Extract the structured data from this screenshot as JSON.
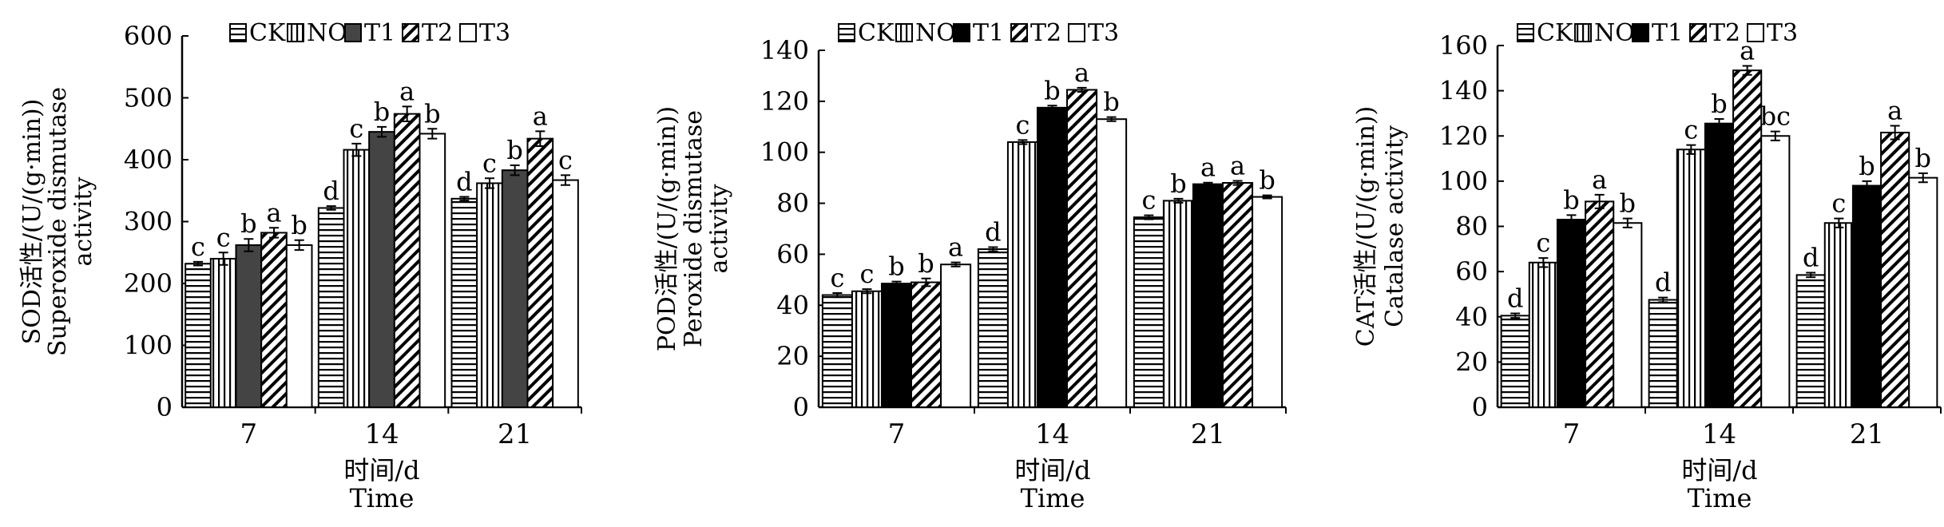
{
  "chart_data": [
    {
      "type": "bar",
      "ylabel_lines": [
        "SOD活性/(U/(g·min))",
        "Superoxide dismutase",
        "activity"
      ],
      "xlabel_lines": [
        "时间/d",
        "Time"
      ],
      "categories": [
        "7",
        "14",
        "21"
      ],
      "ylim": [
        0,
        600
      ],
      "yticks": [
        0,
        100,
        200,
        300,
        400,
        500,
        600
      ],
      "legend_position": "top",
      "series": [
        {
          "name": "CK",
          "values": [
            232,
            322,
            337
          ],
          "errors": [
            3,
            3,
            3
          ],
          "letters": [
            "c",
            "d",
            "d"
          ]
        },
        {
          "name": "NO",
          "values": [
            240,
            416,
            362
          ],
          "errors": [
            10,
            10,
            8
          ],
          "letters": [
            "c",
            "c",
            "c"
          ]
        },
        {
          "name": "T1",
          "values": [
            262,
            445,
            383
          ],
          "errors": [
            10,
            8,
            8
          ],
          "letters": [
            "b",
            "b",
            "b"
          ]
        },
        {
          "name": "T2",
          "values": [
            282,
            474,
            434
          ],
          "errors": [
            8,
            12,
            12
          ],
          "letters": [
            "a",
            "a",
            "a"
          ]
        },
        {
          "name": "T3",
          "values": [
            262,
            442,
            367
          ],
          "errors": [
            8,
            8,
            8
          ],
          "letters": [
            "b",
            "b",
            "c"
          ]
        }
      ]
    },
    {
      "type": "bar",
      "ylabel_lines": [
        "POD活性/(U/(g·min))",
        "Peroxide dismutase",
        "activity"
      ],
      "xlabel_lines": [
        "时间/d",
        "Time"
      ],
      "categories": [
        "7",
        "14",
        "21"
      ],
      "ylim": [
        0,
        140
      ],
      "yticks": [
        0,
        20,
        40,
        60,
        80,
        100,
        120,
        140
      ],
      "legend_position": "top",
      "series": [
        {
          "name": "CK",
          "values": [
            44,
            62,
            74.5
          ],
          "errors": [
            0.8,
            0.8,
            0.8
          ],
          "letters": [
            "c",
            "d",
            "c"
          ]
        },
        {
          "name": "NO",
          "values": [
            45.5,
            104,
            81
          ],
          "errors": [
            0.8,
            0.8,
            0.8
          ],
          "letters": [
            "c",
            "c",
            "b"
          ]
        },
        {
          "name": "T1",
          "values": [
            48.5,
            117.5,
            87.5
          ],
          "errors": [
            0.8,
            0.8,
            0.6
          ],
          "letters": [
            "b",
            "b",
            "a"
          ]
        },
        {
          "name": "T2",
          "values": [
            49,
            124.5,
            88
          ],
          "errors": [
            1.5,
            0.8,
            0.8
          ],
          "letters": [
            "b",
            "a",
            "a"
          ]
        },
        {
          "name": "T3",
          "values": [
            56,
            113,
            82.5
          ],
          "errors": [
            0.8,
            0.8,
            0.6
          ],
          "letters": [
            "a",
            "b",
            "b"
          ]
        }
      ]
    },
    {
      "type": "bar",
      "ylabel_lines": [
        "CAT活性/(U/(g·min))",
        "Catalase activity"
      ],
      "xlabel_lines": [
        "时间/d",
        "Time"
      ],
      "categories": [
        "7",
        "14",
        "21"
      ],
      "ylim": [
        0,
        160
      ],
      "yticks": [
        0,
        20,
        40,
        60,
        80,
        100,
        120,
        140,
        160
      ],
      "legend_position": "top",
      "series": [
        {
          "name": "CK",
          "values": [
            40.5,
            47.5,
            58.5
          ],
          "errors": [
            1,
            1,
            1
          ],
          "letters": [
            "d",
            "d",
            "d"
          ]
        },
        {
          "name": "NO",
          "values": [
            64,
            114,
            81.5
          ],
          "errors": [
            2,
            2,
            2
          ],
          "letters": [
            "c",
            "c",
            "c"
          ]
        },
        {
          "name": "T1",
          "values": [
            83,
            125.5,
            98
          ],
          "errors": [
            2,
            2,
            2
          ],
          "letters": [
            "b",
            "b",
            "b"
          ]
        },
        {
          "name": "T2",
          "values": [
            91,
            149,
            121.5
          ],
          "errors": [
            3,
            2,
            3
          ],
          "letters": [
            "a",
            "a",
            "a"
          ]
        },
        {
          "name": "T3",
          "values": [
            81.5,
            120,
            101.5
          ],
          "errors": [
            2,
            2,
            2
          ],
          "letters": [
            "b",
            "bc",
            "b"
          ]
        }
      ]
    }
  ],
  "colors": {
    "axis": "#000000",
    "fill_white": "#ffffff",
    "fill_dark": "#444444",
    "fill_black": "#000000"
  },
  "patterns": {
    "CK": "horizontal-stripes",
    "NO": "vertical-stripes",
    "T1": "solid-fill",
    "T2": "diagonal-stripes",
    "T3": "empty"
  }
}
